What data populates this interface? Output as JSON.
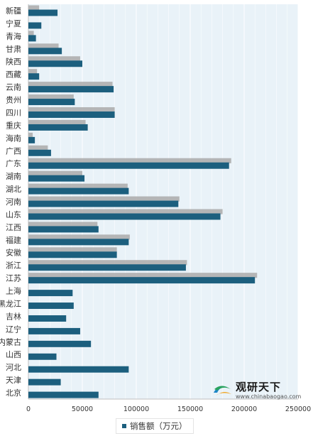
{
  "chart_data": {
    "type": "bar",
    "orientation": "horizontal",
    "categories": [
      "新疆",
      "宁夏",
      "青海",
      "甘肃",
      "陕西",
      "西藏",
      "云南",
      "贵州",
      "四川",
      "重庆",
      "海南",
      "广西",
      "广东",
      "湖南",
      "湖北",
      "河南",
      "山东",
      "江西",
      "福建",
      "安徽",
      "浙江",
      "江苏",
      "上海",
      "黑龙江",
      "吉林",
      "辽宁",
      "内蒙古",
      "山西",
      "河北",
      "天津",
      "北京"
    ],
    "series": [
      {
        "name": "",
        "color": "#aaaaaa",
        "values": [
          10000,
          null,
          5000,
          28000,
          48000,
          8000,
          78000,
          42000,
          80000,
          53000,
          4000,
          18000,
          188000,
          50000,
          92000,
          140000,
          180000,
          64000,
          94000,
          82000,
          147000,
          212000,
          null,
          null,
          null,
          null,
          null,
          null,
          null,
          null,
          null
        ]
      },
      {
        "name": "销售额（万元）",
        "color": "#1c5f7e",
        "values": [
          27000,
          12000,
          7000,
          31000,
          50000,
          10000,
          79000,
          43000,
          80000,
          55000,
          6000,
          21000,
          186000,
          52000,
          93000,
          139000,
          178000,
          65000,
          93000,
          82000,
          146000,
          210000,
          41000,
          42000,
          35000,
          48000,
          58000,
          26000,
          93000,
          30000,
          65000
        ]
      }
    ],
    "xlim": [
      0,
      250000
    ],
    "xticks": [
      "0",
      "50000",
      "100000",
      "150000",
      "200000",
      "250000"
    ],
    "grid": true,
    "legend": "bottom"
  },
  "legend": {
    "label": "销售额（万元）"
  },
  "watermark": {
    "name": "观研天下",
    "url": "www.chinabaogao.com"
  }
}
